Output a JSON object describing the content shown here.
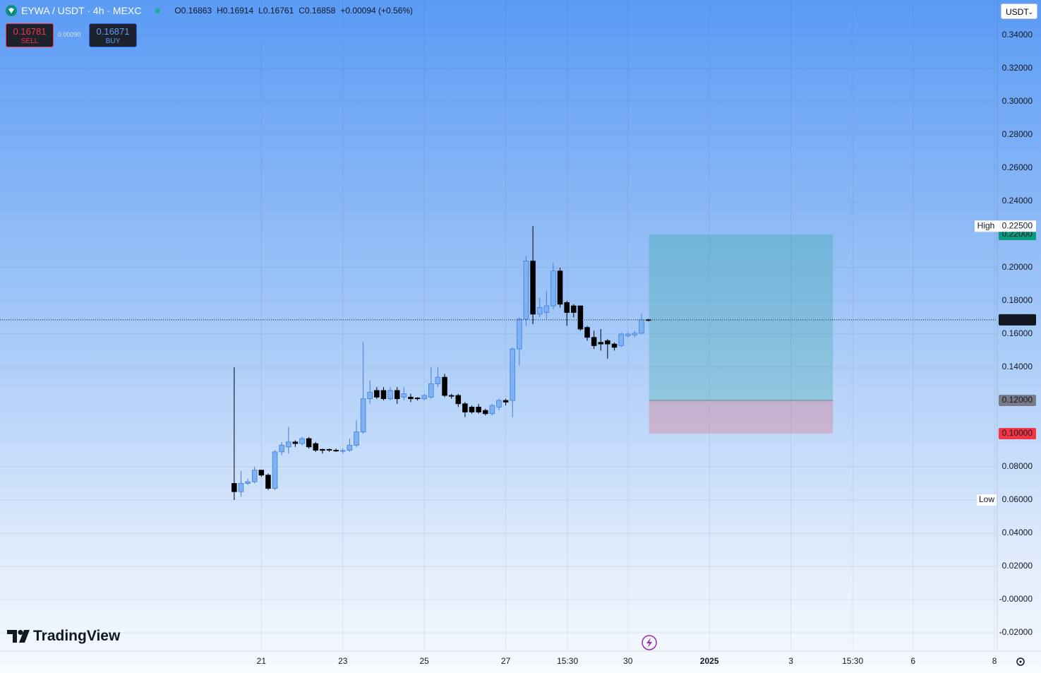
{
  "chart_data": {
    "type": "candlestick",
    "title": "EYWA / USDT · 4h · MEXC",
    "ohlc_letters": [
      "O",
      "H",
      "L",
      "C"
    ],
    "change": "+0.00094 (+0.56%)",
    "trade_panel": {
      "sell_price": "0.16781",
      "sell": "SELL",
      "spread": "0.00090",
      "buy_price": "0.16871",
      "buy": "BUY"
    },
    "currency": "USDT",
    "logo": "TradingView",
    "up_color": "#7fb2f3",
    "up_border": "#3d7fdc",
    "down_color": "#000000",
    "ohlc": [
      [
        0.07,
        0.14,
        0.06,
        0.065
      ],
      [
        0.065,
        0.0775,
        0.062,
        0.07
      ],
      [
        0.07,
        0.073,
        0.069,
        0.071
      ],
      [
        0.071,
        0.08,
        0.07,
        0.078
      ],
      [
        0.078,
        0.078,
        0.074,
        0.075
      ],
      [
        0.075,
        0.076,
        0.066,
        0.067
      ],
      [
        0.067,
        0.09,
        0.066,
        0.089
      ],
      [
        0.089,
        0.095,
        0.087,
        0.093
      ],
      [
        0.092,
        0.104,
        0.088,
        0.095
      ],
      [
        0.095,
        0.096,
        0.092,
        0.094
      ],
      [
        0.094,
        0.098,
        0.093,
        0.097
      ],
      [
        0.097,
        0.098,
        0.091,
        0.092
      ],
      [
        0.094,
        0.095,
        0.089,
        0.09
      ],
      [
        0.0905,
        0.091,
        0.088,
        0.0899
      ],
      [
        0.0905,
        0.091,
        0.089,
        0.09
      ],
      [
        0.09,
        0.091,
        0.089,
        0.0895
      ],
      [
        0.0895,
        0.091,
        0.088,
        0.0898
      ],
      [
        0.09,
        0.097,
        0.089,
        0.093
      ],
      [
        0.093,
        0.108,
        0.092,
        0.101
      ],
      [
        0.101,
        0.155,
        0.1,
        0.121
      ],
      [
        0.121,
        0.132,
        0.118,
        0.125
      ],
      [
        0.126,
        0.128,
        0.121,
        0.122
      ],
      [
        0.126,
        0.128,
        0.12,
        0.121
      ],
      [
        0.121,
        0.128,
        0.12,
        0.126
      ],
      [
        0.126,
        0.128,
        0.118,
        0.121
      ],
      [
        0.122,
        0.128,
        0.12,
        0.124
      ],
      [
        0.122,
        0.124,
        0.119,
        0.121
      ],
      [
        0.1215,
        0.122,
        0.12,
        0.121
      ],
      [
        0.121,
        0.124,
        0.12,
        0.123
      ],
      [
        0.122,
        0.14,
        0.121,
        0.13
      ],
      [
        0.13,
        0.14,
        0.128,
        0.134
      ],
      [
        0.134,
        0.136,
        0.122,
        0.123
      ],
      [
        0.123,
        0.124,
        0.121,
        0.1225
      ],
      [
        0.123,
        0.124,
        0.116,
        0.118
      ],
      [
        0.118,
        0.119,
        0.11,
        0.113
      ],
      [
        0.116,
        0.117,
        0.112,
        0.113
      ],
      [
        0.116,
        0.118,
        0.112,
        0.113
      ],
      [
        0.114,
        0.115,
        0.111,
        0.112
      ],
      [
        0.112,
        0.118,
        0.111,
        0.117
      ],
      [
        0.116,
        0.121,
        0.114,
        0.12
      ],
      [
        0.12,
        0.121,
        0.117,
        0.119
      ],
      [
        0.12,
        0.152,
        0.11,
        0.151
      ],
      [
        0.151,
        0.17,
        0.141,
        0.169
      ],
      [
        0.169,
        0.207,
        0.165,
        0.204
      ],
      [
        0.204,
        0.225,
        0.166,
        0.172
      ],
      [
        0.172,
        0.182,
        0.17,
        0.176
      ],
      [
        0.173,
        0.186,
        0.169,
        0.177
      ],
      [
        0.177,
        0.203,
        0.175,
        0.198
      ],
      [
        0.198,
        0.2,
        0.176,
        0.178
      ],
      [
        0.179,
        0.18,
        0.165,
        0.173
      ],
      [
        0.177,
        0.178,
        0.17,
        0.173
      ],
      [
        0.177,
        0.177,
        0.162,
        0.163
      ],
      [
        0.164,
        0.165,
        0.156,
        0.158
      ],
      [
        0.158,
        0.162,
        0.151,
        0.153
      ],
      [
        0.155,
        0.163,
        0.15,
        0.154
      ],
      [
        0.156,
        0.157,
        0.145,
        0.154
      ],
      [
        0.154,
        0.155,
        0.15,
        0.152
      ],
      [
        0.153,
        0.161,
        0.152,
        0.16
      ],
      [
        0.159,
        0.161,
        0.158,
        0.16
      ],
      [
        0.1595,
        0.162,
        0.158,
        0.1605
      ],
      [
        0.1605,
        0.1721,
        0.16,
        0.1686
      ],
      [
        0.16863,
        0.16914,
        0.16761,
        0.16858
      ]
    ],
    "xlim": [
      -34.5,
      112.4
    ],
    "xticks": [
      {
        "value": 4,
        "label": "21"
      },
      {
        "value": 16,
        "label": "23"
      },
      {
        "value": 28,
        "label": "25"
      },
      {
        "value": 40,
        "label": "27"
      },
      {
        "value": 49.1,
        "label": "15:30"
      },
      {
        "value": 58,
        "label": "30"
      },
      {
        "value": 70,
        "label": "2025"
      },
      {
        "value": 82,
        "label": "3"
      },
      {
        "value": 91.1,
        "label": "15:30"
      },
      {
        "value": 100,
        "label": "6"
      },
      {
        "value": 112,
        "label": "8"
      }
    ],
    "ylim": [
      -0.0302,
      0.3613
    ],
    "yticks": [
      {
        "value": 0.34,
        "label": "0.34000"
      },
      {
        "value": 0.32,
        "label": "0.32000"
      },
      {
        "value": 0.3,
        "label": "0.30000"
      },
      {
        "value": 0.28,
        "label": "0.28000"
      },
      {
        "value": 0.26,
        "label": "0.26000"
      },
      {
        "value": 0.24,
        "label": "0.24000"
      },
      {
        "value": 0.2,
        "label": "0.20000"
      },
      {
        "value": 0.18,
        "label": "0.18000"
      },
      {
        "value": 0.16,
        "label": "0.16000"
      },
      {
        "value": 0.14,
        "label": "0.14000"
      },
      {
        "value": 0.08,
        "label": "0.08000"
      },
      {
        "value": 0.06,
        "label": "0.06000"
      },
      {
        "value": 0.04,
        "label": "0.04000"
      },
      {
        "value": 0.02,
        "label": "0.02000"
      },
      {
        "value": 0,
        "label": "-0.00000"
      },
      {
        "value": -0.02,
        "label": "-0.02000"
      }
    ],
    "grid": true,
    "high_marker": {
      "label": "High",
      "value": 0.225,
      "value_label": "0.22500"
    },
    "low_marker": {
      "label": "Low",
      "value": 0.06
    },
    "position": {
      "start": 61.1,
      "end": 88.2,
      "target": {
        "value": 0.22,
        "label": "0.22000"
      },
      "entry": {
        "value": 0.12,
        "label": "0.12000"
      },
      "stop": {
        "value": 0.1,
        "label": "0.10000"
      },
      "target_color": "#089981",
      "entry_color": "#787b86",
      "stop_color": "#f23645"
    }
  }
}
